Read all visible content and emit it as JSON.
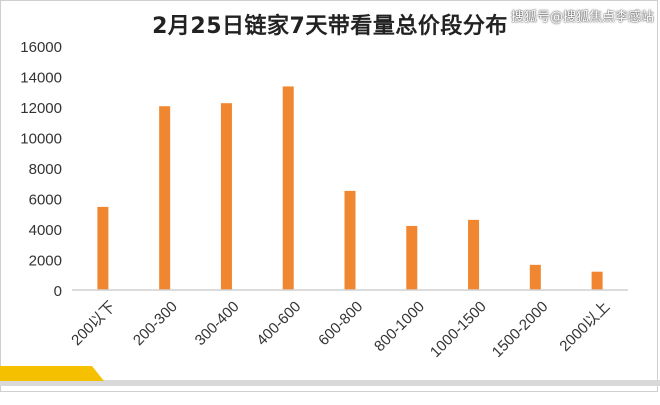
{
  "title": "2月25日链家7天带看量总价段分布",
  "watermark": "搜狐号@搜狐焦点李感站",
  "colors": {
    "bar": "#f0862f",
    "axis": "#d0d0d0",
    "text": "#333333"
  },
  "chart_data": {
    "type": "bar",
    "title": "2月25日链家7天带看量总价段分布",
    "xlabel": "",
    "ylabel": "",
    "ylim": [
      0,
      16000
    ],
    "yticks": [
      0,
      2000,
      4000,
      6000,
      8000,
      10000,
      12000,
      14000,
      16000
    ],
    "grid": false,
    "categories": [
      "200以下",
      "200-300",
      "300-400",
      "400-600",
      "600-800",
      "800-1000",
      "1000-1500",
      "1500-2000",
      "2000以上"
    ],
    "values": [
      5450,
      12050,
      12250,
      13350,
      6500,
      4200,
      4600,
      1650,
      1200
    ]
  }
}
